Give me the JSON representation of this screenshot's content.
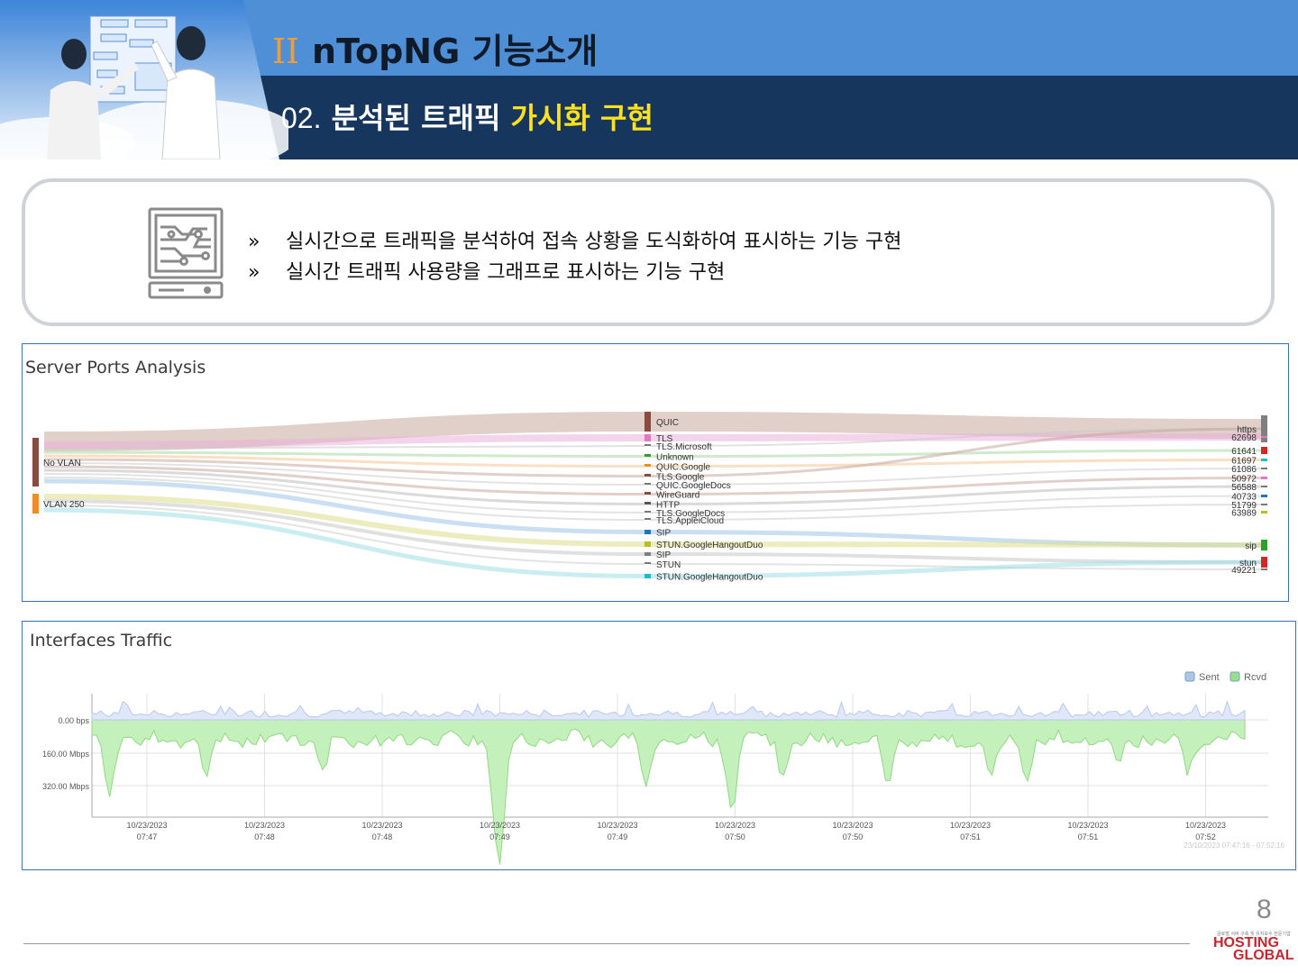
{
  "header": {
    "roman": "II",
    "title": "nTopNG 기능소개",
    "sub_num": "02.",
    "sub_text": " 분석된 트래픽 ",
    "sub_highlight": "가시화 구현"
  },
  "info": {
    "icon": "circuit-monitor-icon",
    "bullets": [
      {
        "marker": "»",
        "text": "실시간으로 트래픽을 분석하여 접속 상황을 도식화하여 표시하는 기능 구현"
      },
      {
        "marker": "»",
        "text": "실시간 트래픽 사용량을 그래프로 표시하는 기능 구현"
      }
    ]
  },
  "sankey": {
    "title": "Server Ports Analysis",
    "left_nodes": [
      {
        "label": "No VLAN",
        "color": "#8a4a40"
      },
      {
        "label": "VLAN 250",
        "color": "#f58a1f"
      }
    ],
    "middle_nodes": [
      {
        "label": "QUIC",
        "color": "#8a4a40"
      },
      {
        "label": "TLS",
        "color": "#e377c2"
      },
      {
        "label": "TLS.Microsoft",
        "color": "#777777"
      },
      {
        "label": "Unknown",
        "color": "#2ca02c"
      },
      {
        "label": "QUIC.Google",
        "color": "#f58a1f"
      },
      {
        "label": "TLS.Google",
        "color": "#8a4a40"
      },
      {
        "label": "QUIC.GoogleDocs",
        "color": "#777777"
      },
      {
        "label": "WireGuard",
        "color": "#8a4a40"
      },
      {
        "label": "HTTP",
        "color": "#555555"
      },
      {
        "label": "TLS.GoogleDocs",
        "color": "#777777"
      },
      {
        "label": "TLS.AppleiCloud",
        "color": "#777777"
      },
      {
        "label": "SIP",
        "color": "#1f77b4"
      },
      {
        "label": "STUN.GoogleHangoutDuo",
        "color": "#bcbd22"
      },
      {
        "label": "SIP",
        "color": "#7f7f7f"
      },
      {
        "label": "STUN",
        "color": "#777777"
      },
      {
        "label": "STUN.GoogleHangoutDuo",
        "color": "#17becf"
      }
    ],
    "right_nodes": [
      {
        "label": "https",
        "color": "#7f7f7f"
      },
      {
        "label": "62698",
        "color": "#e377c2"
      },
      {
        "label": "61641",
        "color": "#d62728"
      },
      {
        "label": "61697",
        "color": "#17becf"
      },
      {
        "label": "61086",
        "color": "#777777"
      },
      {
        "label": "50972",
        "color": "#e377c2"
      },
      {
        "label": "56588",
        "color": "#777777"
      },
      {
        "label": "40733",
        "color": "#1f77b4"
      },
      {
        "label": "51799",
        "color": "#777777"
      },
      {
        "label": "63989",
        "color": "#bcbd22"
      },
      {
        "label": "sip",
        "color": "#2ca02c"
      },
      {
        "label": "stun",
        "color": "#d62728"
      },
      {
        "label": "49221",
        "color": "#777777"
      }
    ]
  },
  "traffic": {
    "title": "Interfaces Traffic",
    "legend": [
      {
        "label": "Sent",
        "color": "#aec7e8"
      },
      {
        "label": "Rcvd",
        "color": "#98df8a"
      }
    ],
    "y_ticks": [
      "0.00 bps",
      "160.00 Mbps",
      "320.00 Mbps"
    ],
    "x_ticks": [
      {
        "date": "10/23/2023",
        "time": "07:47"
      },
      {
        "date": "10/23/2023",
        "time": "07:48"
      },
      {
        "date": "10/23/2023",
        "time": "07:48"
      },
      {
        "date": "10/23/2023",
        "time": "07:49"
      },
      {
        "date": "10/23/2023",
        "time": "07:49"
      },
      {
        "date": "10/23/2023",
        "time": "07:50"
      },
      {
        "date": "10/23/2023",
        "time": "07:50"
      },
      {
        "date": "10/23/2023",
        "time": "07:51"
      },
      {
        "date": "10/23/2023",
        "time": "07:51"
      },
      {
        "date": "10/23/2023",
        "time": "07:52"
      }
    ],
    "range_label": "23/10/2023 07:47:16 - 07:52:16"
  },
  "footer": {
    "page": "8",
    "brand_small": "글로벌 서버 구축 및 유지보수 전문기업",
    "brand_line1": "HOSTING",
    "brand_line2": "GLOBAL"
  }
}
